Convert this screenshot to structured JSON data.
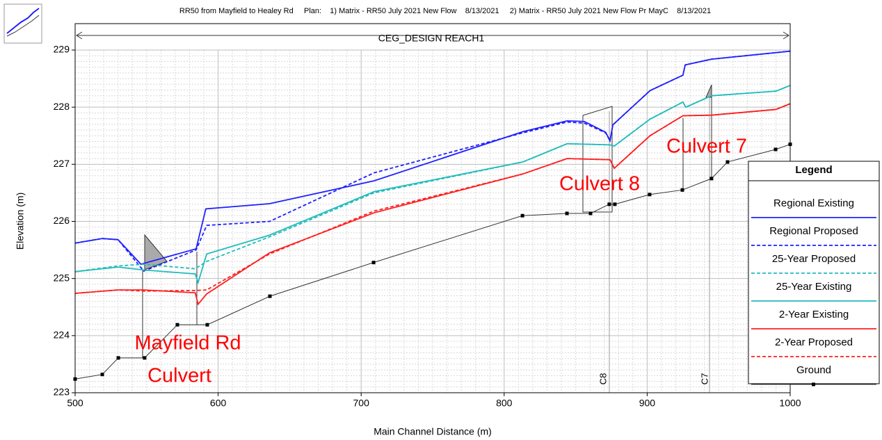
{
  "chart_data": {
    "type": "line",
    "title": "RR50 from Mayfield to Healey Rd     Plan:    1) Matrix - RR50 July 2021 New Flow    8/13/2021     2) Matrix - RR50 July 2021 New Flow Pr MayC    8/13/2021",
    "reach_label": "CEG_DESIGN REACH1",
    "x_label": "Main Channel Distance (m)",
    "y_label": "Elevation (m)",
    "xlim": [
      500,
      1000
    ],
    "ylim": [
      223,
      229
    ],
    "xticks": [
      500,
      600,
      700,
      800,
      900,
      1000
    ],
    "yticks": [
      223,
      224,
      225,
      226,
      227,
      228,
      229
    ],
    "grid": true,
    "legend_title": "Legend",
    "legend_position": "right",
    "annotations": [
      "Mayfield Rd",
      "Culvert",
      "Culvert 8",
      "Culvert 7",
      "C8",
      "C7"
    ],
    "series": [
      {
        "name": "Regional Existing",
        "color": "#1f1fff",
        "style": "solid",
        "x": [
          500,
          519,
          530,
          546,
          584.6,
          591.4,
          636,
          709,
          813,
          844,
          856,
          871,
          874,
          876,
          902,
          925,
          926.6,
          945,
          1000
        ],
        "values": [
          225.62,
          225.7,
          225.68,
          225.25,
          225.52,
          226.22,
          226.31,
          226.71,
          227.57,
          227.76,
          227.75,
          227.56,
          227.41,
          227.69,
          228.29,
          228.56,
          228.74,
          228.84,
          228.98
        ]
      },
      {
        "name": "Regional Proposed",
        "color": "#1f1fff",
        "style": "dashed",
        "x": [
          500,
          519,
          530,
          548,
          584.6,
          592,
          636,
          709,
          813,
          844,
          856,
          871,
          874,
          876,
          902,
          925,
          926.6,
          945,
          1000
        ],
        "values": [
          225.62,
          225.7,
          225.68,
          225.13,
          225.5,
          225.93,
          226.0,
          226.85,
          227.55,
          227.74,
          227.72,
          227.55,
          227.41,
          227.69,
          228.29,
          228.56,
          228.74,
          228.84,
          228.98
        ]
      },
      {
        "name": "25-Year Proposed",
        "color": "#20bcbc",
        "style": "dashed",
        "x": [
          500,
          530,
          548,
          584,
          592,
          636,
          709,
          813,
          844,
          874,
          877,
          902,
          925,
          927,
          945,
          990,
          1000
        ],
        "values": [
          225.12,
          225.22,
          225.25,
          225.17,
          225.3,
          225.73,
          226.5,
          227.04,
          227.36,
          227.34,
          227.32,
          227.79,
          228.09,
          228.0,
          228.2,
          228.28,
          228.38
        ]
      },
      {
        "name": "25-Year Existing",
        "color": "#20bcbc",
        "style": "solid",
        "x": [
          500,
          530,
          548,
          584,
          586,
          592,
          636,
          709,
          813,
          844,
          874,
          877,
          902,
          925,
          927,
          945,
          990,
          1000
        ],
        "values": [
          225.12,
          225.2,
          225.15,
          225.08,
          224.93,
          225.43,
          225.76,
          226.52,
          227.04,
          227.36,
          227.34,
          227.32,
          227.79,
          228.09,
          228.0,
          228.2,
          228.28,
          228.38
        ]
      },
      {
        "name": "2-Year Existing",
        "color": "#ff1f1f",
        "style": "solid",
        "x": [
          500,
          530,
          548,
          584,
          586,
          592,
          636,
          709,
          813,
          844,
          874,
          877,
          902,
          925,
          945,
          990,
          1000
        ],
        "values": [
          224.74,
          224.8,
          224.8,
          224.75,
          224.55,
          224.73,
          225.45,
          226.15,
          226.83,
          227.1,
          227.08,
          226.93,
          227.5,
          227.85,
          227.86,
          227.96,
          228.06
        ]
      },
      {
        "name": "2-Year Proposed",
        "color": "#ff1f1f",
        "style": "dashed",
        "x": [
          500,
          530,
          548,
          584,
          592,
          636,
          709,
          813,
          844,
          874,
          877,
          902,
          925,
          945,
          990,
          1000
        ],
        "values": [
          224.74,
          224.8,
          224.78,
          224.79,
          224.8,
          225.43,
          226.18,
          226.83,
          227.1,
          227.08,
          226.93,
          227.5,
          227.85,
          227.86,
          227.96,
          228.06
        ]
      },
      {
        "name": "Ground",
        "color": "#333333",
        "style": "solid",
        "marker": "square",
        "x": [
          500,
          519,
          530.2,
          548.6,
          571.5,
          592.4,
          636.2,
          708.7,
          812.8,
          843.9,
          860.4,
          873.5,
          877.4,
          901.7,
          924.6,
          945,
          956.2,
          989.8,
          1000
        ],
        "values": [
          223.24,
          223.32,
          223.61,
          223.61,
          224.19,
          224.19,
          224.69,
          225.28,
          226.1,
          226.14,
          226.14,
          226.3,
          226.3,
          226.47,
          226.55,
          226.75,
          227.04,
          227.26,
          227.35
        ]
      }
    ]
  }
}
